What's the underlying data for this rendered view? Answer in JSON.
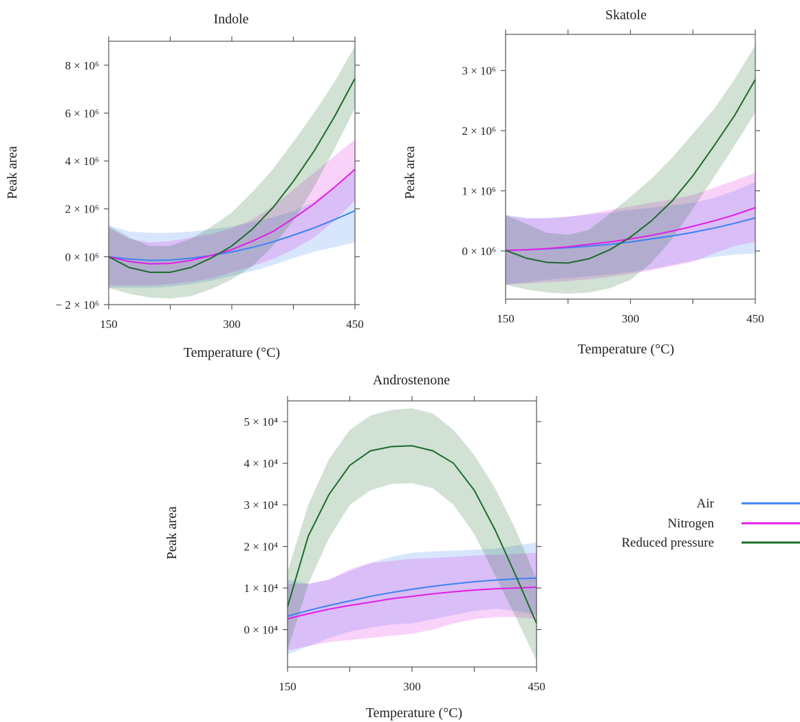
{
  "legend": {
    "items": [
      {
        "label": "Air",
        "color": "#3b82f6"
      },
      {
        "label": "Nitrogen",
        "color": "#e11de8"
      },
      {
        "label": "Reduced pressure",
        "color": "#1a6b2a"
      }
    ]
  },
  "chart_data": [
    {
      "type": "line",
      "title": "Indole",
      "xlabel": "Temperature (°C)",
      "ylabel": "Peak area",
      "xlim": [
        150,
        450
      ],
      "ylim": [
        -2000000,
        9000000
      ],
      "x_ticks": [
        150,
        300,
        450
      ],
      "y_ticks": [
        -2000000,
        0,
        2000000,
        4000000,
        6000000,
        8000000
      ],
      "y_tick_labels": [
        "− 2 × 10⁶",
        "0 × 10⁶",
        "2 × 10⁶",
        "4 × 10⁶",
        "6 × 10⁶",
        "8 × 10⁶"
      ],
      "x": [
        150,
        175,
        200,
        225,
        250,
        275,
        300,
        325,
        350,
        375,
        400,
        425,
        450
      ],
      "series": [
        {
          "name": "Air",
          "color": "#3b82f6",
          "values": [
            0,
            -100000,
            -150000,
            -140000,
            -60000,
            50000,
            200000,
            390000,
            620000,
            900000,
            1200000,
            1550000,
            1920000
          ],
          "lower": [
            -1300000,
            -1300000,
            -1300000,
            -1250000,
            -1150000,
            -1000000,
            -800000,
            -600000,
            -350000,
            -50000,
            200000,
            400000,
            600000
          ],
          "upper": [
            1300000,
            1050000,
            1000000,
            1000000,
            1050000,
            1150000,
            1250000,
            1450000,
            1650000,
            1900000,
            2300000,
            2900000,
            3600000
          ]
        },
        {
          "name": "Nitrogen",
          "color": "#e11de8",
          "values": [
            0,
            -200000,
            -300000,
            -280000,
            -150000,
            50000,
            300000,
            650000,
            1050000,
            1600000,
            2200000,
            2900000,
            3650000
          ],
          "lower": [
            -1200000,
            -1200000,
            -1200000,
            -1150000,
            -1050000,
            -900000,
            -650000,
            -400000,
            -100000,
            300000,
            800000,
            1500000,
            2350000
          ],
          "upper": [
            1200000,
            750000,
            600000,
            650000,
            800000,
            950000,
            1200000,
            1550000,
            2100000,
            2800000,
            3500000,
            4200000,
            4900000
          ]
        },
        {
          "name": "Reduced pressure",
          "color": "#1a6b2a",
          "values": [
            0,
            -450000,
            -650000,
            -650000,
            -450000,
            -50000,
            450000,
            1150000,
            2050000,
            3150000,
            4400000,
            5850000,
            7450000
          ],
          "lower": [
            -1300000,
            -1550000,
            -1700000,
            -1750000,
            -1650000,
            -1350000,
            -950000,
            -400000,
            450000,
            1500000,
            2900000,
            4500000,
            6200000
          ],
          "upper": [
            1300000,
            800000,
            450000,
            450000,
            750000,
            1250000,
            1850000,
            2700000,
            3650000,
            4800000,
            6000000,
            7300000,
            8800000
          ]
        }
      ]
    },
    {
      "type": "line",
      "title": "Skatole",
      "xlabel": "Temperature (°C)",
      "ylabel": "Peak area",
      "xlim": [
        150,
        450
      ],
      "ylim": [
        -800000,
        3600000
      ],
      "x_ticks": [
        150,
        300,
        450
      ],
      "y_ticks": [
        0,
        1000000,
        2000000,
        3000000
      ],
      "y_tick_labels": [
        "0 × 10⁶",
        "1 × 10⁶",
        "2 × 10⁶",
        "3 × 10⁶"
      ],
      "x": [
        150,
        175,
        200,
        225,
        250,
        275,
        300,
        325,
        350,
        375,
        400,
        425,
        450
      ],
      "series": [
        {
          "name": "Air",
          "color": "#3b82f6",
          "values": [
            10000,
            20000,
            35000,
            55000,
            80000,
            110000,
            150000,
            200000,
            250000,
            310000,
            380000,
            460000,
            550000
          ],
          "lower": [
            -560000,
            -520000,
            -480000,
            -450000,
            -420000,
            -390000,
            -350000,
            -300000,
            -230000,
            -160000,
            -100000,
            -60000,
            -40000
          ],
          "upper": [
            600000,
            550000,
            550000,
            570000,
            600000,
            640000,
            680000,
            720000,
            760000,
            800000,
            880000,
            1000000,
            1150000
          ]
        },
        {
          "name": "Nitrogen",
          "color": "#e11de8",
          "values": [
            10000,
            20000,
            40000,
            70000,
            110000,
            150000,
            200000,
            260000,
            330000,
            410000,
            500000,
            600000,
            720000
          ],
          "lower": [
            -560000,
            -540000,
            -520000,
            -500000,
            -470000,
            -430000,
            -380000,
            -320000,
            -250000,
            -180000,
            -40000,
            80000,
            150000
          ],
          "upper": [
            580000,
            540000,
            540000,
            570000,
            620000,
            680000,
            740000,
            800000,
            860000,
            930000,
            1050000,
            1170000,
            1300000
          ]
        },
        {
          "name": "Reduced pressure",
          "color": "#1a6b2a",
          "values": [
            10000,
            -120000,
            -190000,
            -200000,
            -130000,
            20000,
            230000,
            500000,
            830000,
            1250000,
            1740000,
            2250000,
            2850000
          ],
          "lower": [
            -560000,
            -640000,
            -690000,
            -710000,
            -690000,
            -620000,
            -480000,
            -200000,
            200000,
            700000,
            1220000,
            1750000,
            2300000
          ],
          "upper": [
            600000,
            450000,
            300000,
            270000,
            350000,
            620000,
            900000,
            1200000,
            1550000,
            1950000,
            2350000,
            2850000,
            3420000
          ]
        }
      ]
    },
    {
      "type": "line",
      "title": "Androstenone",
      "xlabel": "Temperature (°C)",
      "ylabel": "Peak area",
      "xlim": [
        150,
        450
      ],
      "ylim": [
        -9000,
        55000
      ],
      "x_ticks": [
        150,
        300,
        450
      ],
      "y_ticks": [
        0,
        10000,
        20000,
        30000,
        40000,
        50000
      ],
      "y_tick_labels": [
        "0 × 10⁴",
        "1 × 10⁴",
        "2 × 10⁴",
        "3 × 10⁴",
        "4 × 10⁴",
        "5 × 10⁴"
      ],
      "x": [
        150,
        175,
        200,
        225,
        250,
        275,
        300,
        325,
        350,
        375,
        400,
        425,
        450
      ],
      "series": [
        {
          "name": "Air",
          "color": "#3b82f6",
          "values": [
            3200,
            4600,
            5800,
            6900,
            8000,
            8900,
            9700,
            10400,
            11000,
            11500,
            11900,
            12200,
            12400
          ],
          "lower": [
            -6000,
            -4000,
            -2000,
            -500,
            500,
            1200,
            1500,
            2500,
            3500,
            4500,
            5000,
            4500,
            3500
          ],
          "upper": [
            12000,
            11000,
            12000,
            14000,
            16000,
            17500,
            18500,
            18800,
            19000,
            19200,
            19500,
            20200,
            21000
          ]
        },
        {
          "name": "Nitrogen",
          "color": "#e11de8",
          "values": [
            2600,
            3800,
            4900,
            5800,
            6600,
            7400,
            8000,
            8600,
            9100,
            9500,
            9800,
            10000,
            10200
          ],
          "lower": [
            -5000,
            -4000,
            -3000,
            -2500,
            -2000,
            -1500,
            -1000,
            0,
            1500,
            2500,
            3000,
            3000,
            2500
          ],
          "upper": [
            11000,
            11000,
            12000,
            14500,
            16000,
            16500,
            17000,
            17200,
            17500,
            17800,
            18000,
            18200,
            18500
          ]
        },
        {
          "name": "Reduced pressure",
          "color": "#1a6b2a",
          "values": [
            5500,
            22500,
            32500,
            39500,
            43000,
            44000,
            44200,
            43000,
            40000,
            33500,
            24000,
            13000,
            1500
          ],
          "lower": [
            -5000,
            11000,
            22000,
            30000,
            33500,
            35000,
            35200,
            34000,
            30000,
            23000,
            13000,
            3000,
            -7500
          ],
          "upper": [
            14000,
            30000,
            41000,
            48000,
            51500,
            52800,
            53200,
            52000,
            48000,
            42000,
            34000,
            24000,
            12000
          ]
        }
      ]
    }
  ]
}
